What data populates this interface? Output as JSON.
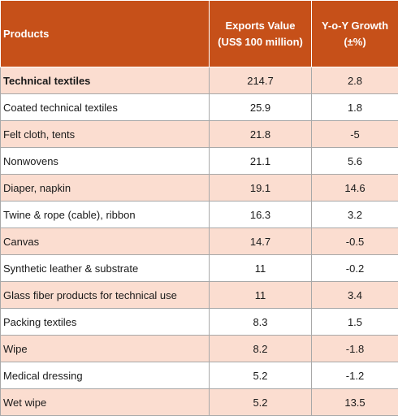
{
  "headers": {
    "products": "Products",
    "exports_line1": "Exports Value",
    "exports_line2": "(US$ 100 million)",
    "growth_line1": "Y-o-Y Growth",
    "growth_line2": "(±%)"
  },
  "rows": [
    {
      "product": "Technical textiles",
      "exports": "214.7",
      "growth": "2.8"
    },
    {
      "product": "Coated technical textiles",
      "exports": "25.9",
      "growth": "1.8"
    },
    {
      "product": "Felt cloth, tents",
      "exports": "21.8",
      "growth": "-5"
    },
    {
      "product": "Nonwovens",
      "exports": "21.1",
      "growth": "5.6"
    },
    {
      "product": "Diaper, napkin",
      "exports": "19.1",
      "growth": "14.6"
    },
    {
      "product": "Twine & rope (cable), ribbon",
      "exports": "16.3",
      "growth": "3.2"
    },
    {
      "product": "Canvas",
      "exports": "14.7",
      "growth": "-0.5"
    },
    {
      "product": "Synthetic leather & substrate",
      "exports": "11",
      "growth": "-0.2"
    },
    {
      "product": "Glass fiber products for technical use",
      "exports": "11",
      "growth": "3.4"
    },
    {
      "product": "Packing textiles",
      "exports": "8.3",
      "growth": "1.5"
    },
    {
      "product": "Wipe",
      "exports": "8.2",
      "growth": "-1.8"
    },
    {
      "product": "Medical dressing",
      "exports": "5.2",
      "growth": "-1.2"
    },
    {
      "product": "Wet wipe",
      "exports": "5.2",
      "growth": "13.5"
    }
  ],
  "colors": {
    "header_bg": "#c65019",
    "header_text": "#ffffff",
    "shaded_row_bg": "#fbddd0",
    "plain_row_bg": "#ffffff"
  }
}
